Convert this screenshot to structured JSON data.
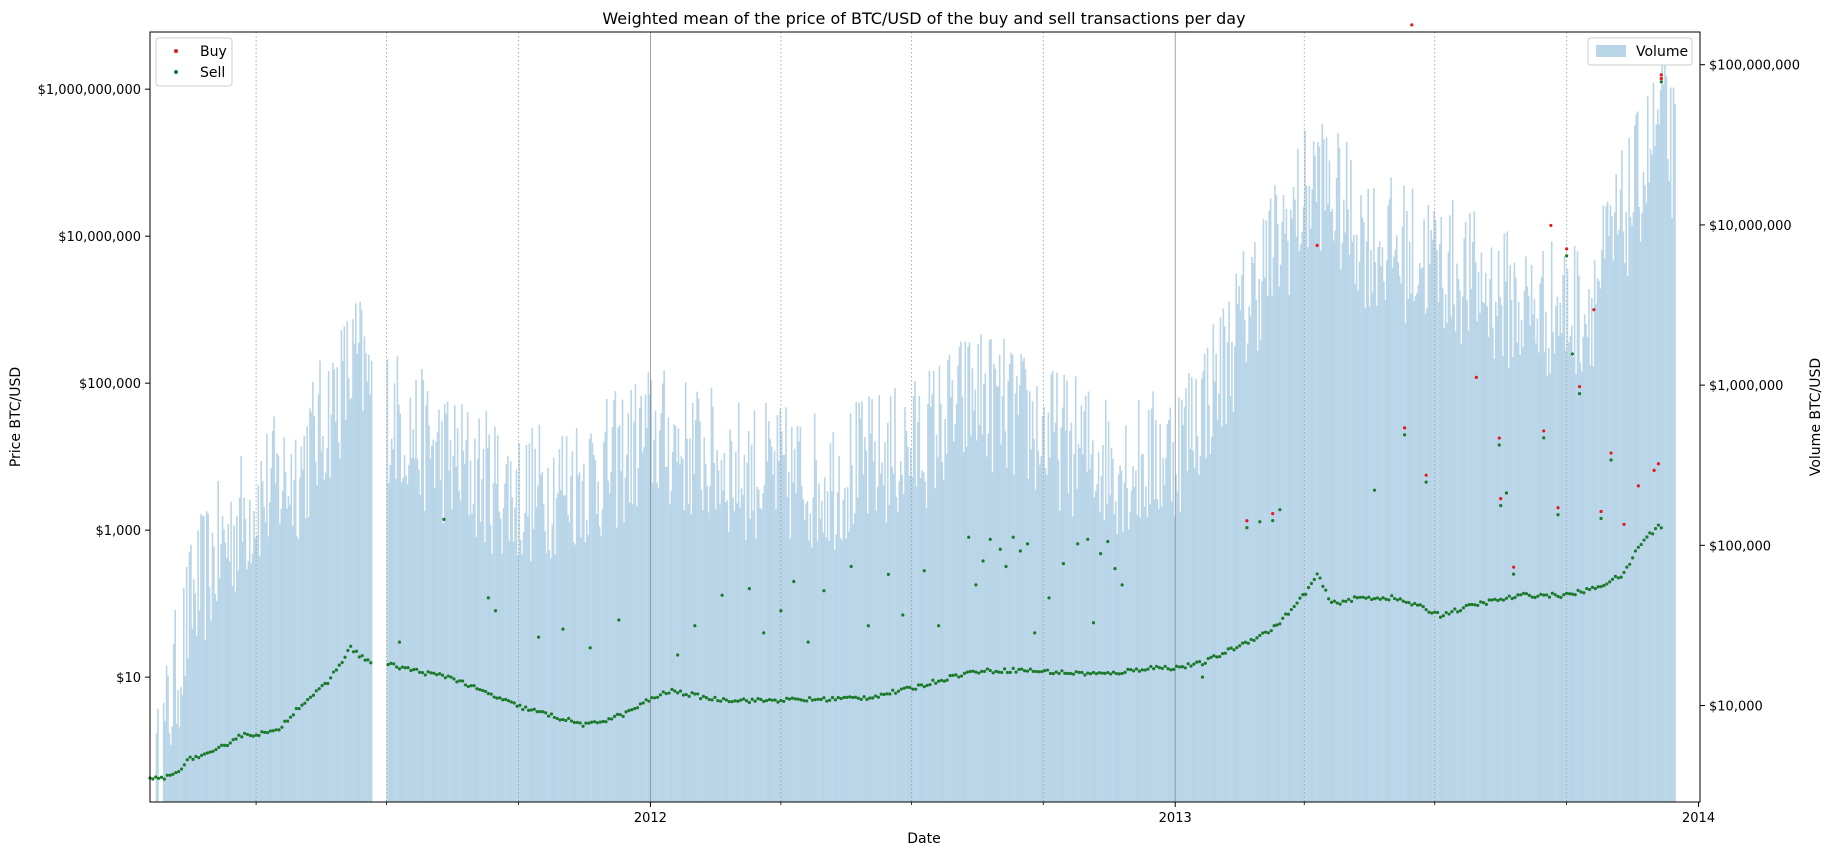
{
  "chart_data": {
    "type": "scatter",
    "title": "Weighted mean of the price of BTC/USD of the buy and sell transactions per day",
    "xlabel": "Date",
    "ylabel": "Price BTC/USD",
    "y2label": "Volume BTC/USD",
    "x_range": [
      "2011-01-17",
      "2014-01-02"
    ],
    "x_ticks": [
      {
        "label": "2012",
        "value": "2012-01-01"
      },
      {
        "label": "2013",
        "value": "2013-01-01"
      },
      {
        "label": "2014",
        "value": "2014-01-01"
      }
    ],
    "y_scale": "log",
    "ylim": [
      0.2,
      6000000000
    ],
    "y_ticks": [
      {
        "label": "$10",
        "value": 10
      },
      {
        "label": "$1,000",
        "value": 1000
      },
      {
        "label": "$100,000",
        "value": 100000
      },
      {
        "label": "$10,000,000",
        "value": 10000000
      },
      {
        "label": "$1,000,000,000",
        "value": 1000000000
      }
    ],
    "y2_scale": "log",
    "y2lim": [
      2500,
      160000000
    ],
    "y2_ticks": [
      {
        "label": "$10,000",
        "value": 10000
      },
      {
        "label": "$100,000",
        "value": 100000
      },
      {
        "label": "$1,000,000",
        "value": 1000000
      },
      {
        "label": "$10,000,000",
        "value": 10000000
      },
      {
        "label": "$100,000,000",
        "value": 100000000
      }
    ],
    "vertical_lines_solid": [
      "2012-01-01",
      "2013-01-01"
    ],
    "vertical_lines_dotted": [
      "2011-04-01",
      "2011-07-01",
      "2011-10-01",
      "2012-04-01",
      "2012-07-01",
      "2012-10-01",
      "2013-04-01",
      "2013-07-01",
      "2013-10-01"
    ],
    "legend_left": {
      "placement": "upper-left",
      "entries": [
        {
          "name": "Buy",
          "color": "#e31a1c"
        },
        {
          "name": "Sell",
          "color": "#1a7a2a"
        }
      ]
    },
    "legend_right": {
      "placement": "upper-right",
      "entries": [
        {
          "name": "Volume",
          "color": "#b9d5e8"
        }
      ]
    },
    "volume_gap": [
      "2011-06-20",
      "2011-07-01"
    ],
    "volume_trend": [
      [
        "2011-01-20",
        3000
      ],
      [
        "2011-02-01",
        12000
      ],
      [
        "2011-02-15",
        45000
      ],
      [
        "2011-03-01",
        80000
      ],
      [
        "2011-04-01",
        200000
      ],
      [
        "2011-05-01",
        300000
      ],
      [
        "2011-06-10",
        1500000
      ],
      [
        "2011-06-20",
        900000
      ],
      [
        "2011-07-01",
        700000
      ],
      [
        "2011-08-01",
        400000
      ],
      [
        "2011-10-01",
        200000
      ],
      [
        "2011-12-01",
        300000
      ],
      [
        "2012-01-01",
        500000
      ],
      [
        "2012-03-01",
        300000
      ],
      [
        "2012-05-01",
        250000
      ],
      [
        "2012-07-01",
        400000
      ],
      [
        "2012-08-15",
        900000
      ],
      [
        "2012-10-01",
        500000
      ],
      [
        "2012-12-01",
        300000
      ],
      [
        "2013-01-01",
        400000
      ],
      [
        "2013-02-01",
        1200000
      ],
      [
        "2013-03-01",
        5000000
      ],
      [
        "2013-04-10",
        20000000
      ],
      [
        "2013-05-15",
        8000000
      ],
      [
        "2013-07-01",
        6000000
      ],
      [
        "2013-09-01",
        3000000
      ],
      [
        "2013-10-15",
        3000000
      ],
      [
        "2013-11-15",
        15000000
      ],
      [
        "2013-12-07",
        50000000
      ],
      [
        "2013-12-15",
        25000000
      ]
    ],
    "price_trend": [
      [
        "2011-01-17",
        0.4
      ],
      [
        "2011-02-01",
        0.45
      ],
      [
        "2011-02-15",
        0.8
      ],
      [
        "2011-03-01",
        0.9
      ],
      [
        "2011-03-20",
        1.6
      ],
      [
        "2011-04-15",
        1.8
      ],
      [
        "2011-05-01",
        4
      ],
      [
        "2011-05-20",
        8
      ],
      [
        "2011-06-06",
        25
      ],
      [
        "2011-06-15",
        18
      ],
      [
        "2011-06-20",
        16
      ],
      [
        "2011-07-01",
        15
      ],
      [
        "2011-08-01",
        11
      ],
      [
        "2011-08-15",
        10
      ],
      [
        "2011-09-01",
        7
      ],
      [
        "2011-10-01",
        4
      ],
      [
        "2011-11-01",
        2.7
      ],
      [
        "2011-11-18",
        2.2
      ],
      [
        "2011-12-15",
        3.2
      ],
      [
        "2012-01-01",
        5
      ],
      [
        "2012-01-15",
        6.5
      ],
      [
        "2012-02-15",
        5
      ],
      [
        "2012-03-15",
        4.8
      ],
      [
        "2012-05-01",
        5
      ],
      [
        "2012-06-01",
        5.3
      ],
      [
        "2012-07-01",
        7
      ],
      [
        "2012-08-01",
        10.5
      ],
      [
        "2012-08-15",
        12
      ],
      [
        "2012-09-15",
        12.5
      ],
      [
        "2012-10-15",
        11.5
      ],
      [
        "2012-11-15",
        11
      ],
      [
        "2012-12-15",
        13.5
      ],
      [
        "2013-01-01",
        13.4
      ],
      [
        "2013-01-20",
        15.5
      ],
      [
        "2013-02-15",
        27
      ],
      [
        "2013-03-10",
        45
      ],
      [
        "2013-03-25",
        90
      ],
      [
        "2013-04-05",
        170
      ],
      [
        "2013-04-10",
        250
      ],
      [
        "2013-04-20",
        100
      ],
      [
        "2013-05-10",
        120
      ],
      [
        "2013-06-01",
        120
      ],
      [
        "2013-06-15",
        100
      ],
      [
        "2013-07-05",
        70
      ],
      [
        "2013-08-01",
        100
      ],
      [
        "2013-09-01",
        130
      ],
      [
        "2013-10-01",
        130
      ],
      [
        "2013-10-20",
        160
      ],
      [
        "2013-11-10",
        250
      ],
      [
        "2013-11-20",
        600
      ],
      [
        "2013-12-01",
        1000
      ],
      [
        "2013-12-04",
        1150
      ],
      [
        "2013-12-07",
        1100
      ]
    ],
    "sell_outliers": [
      [
        "2011-07-10",
        30
      ],
      [
        "2011-08-10",
        1400
      ],
      [
        "2011-09-10",
        120
      ],
      [
        "2011-09-15",
        80
      ],
      [
        "2011-10-15",
        35
      ],
      [
        "2011-11-01",
        45
      ],
      [
        "2011-11-20",
        25
      ],
      [
        "2011-12-10",
        60
      ],
      [
        "2012-01-20",
        20
      ],
      [
        "2012-02-01",
        50
      ],
      [
        "2012-02-20",
        130
      ],
      [
        "2012-03-10",
        160
      ],
      [
        "2012-03-20",
        40
      ],
      [
        "2012-04-01",
        80
      ],
      [
        "2012-04-10",
        200
      ],
      [
        "2012-04-20",
        30
      ],
      [
        "2012-05-01",
        150
      ],
      [
        "2012-05-20",
        320
      ],
      [
        "2012-06-01",
        50
      ],
      [
        "2012-06-15",
        250
      ],
      [
        "2012-06-25",
        70
      ],
      [
        "2012-07-10",
        280
      ],
      [
        "2012-07-20",
        50
      ],
      [
        "2012-08-10",
        800
      ],
      [
        "2012-08-15",
        180
      ],
      [
        "2012-08-20",
        380
      ],
      [
        "2012-08-25",
        750
      ],
      [
        "2012-09-01",
        550
      ],
      [
        "2012-09-05",
        320
      ],
      [
        "2012-09-10",
        800
      ],
      [
        "2012-09-15",
        520
      ],
      [
        "2012-09-20",
        650
      ],
      [
        "2012-09-25",
        40
      ],
      [
        "2012-10-05",
        120
      ],
      [
        "2012-10-15",
        350
      ],
      [
        "2012-10-25",
        650
      ],
      [
        "2012-11-01",
        750
      ],
      [
        "2012-11-05",
        55
      ],
      [
        "2012-11-10",
        480
      ],
      [
        "2012-11-15",
        700
      ],
      [
        "2012-11-20",
        300
      ],
      [
        "2012-11-25",
        180
      ],
      [
        "2013-01-20",
        10
      ],
      [
        "2013-03-01",
        1300
      ],
      [
        "2013-03-15",
        1900
      ],
      [
        "2013-05-20",
        3500
      ],
      [
        "2013-08-20",
        3200
      ],
      [
        "2013-10-05",
        250000
      ]
    ],
    "buy_outliers": [
      [
        "2013-04-10",
        7500000
      ],
      [
        "2013-06-15",
        7500000000
      ],
      [
        "2013-07-30",
        120000
      ],
      [
        "2013-09-20",
        14000000
      ],
      [
        "2013-10-20",
        1000000
      ],
      [
        "2013-11-10",
        1200
      ],
      [
        "2013-11-20",
        4000
      ],
      [
        "2013-12-01",
        6500
      ],
      [
        "2013-12-04",
        8000
      ],
      [
        "2013-12-06",
        1400000000
      ]
    ],
    "buy_sell_pairs": [
      [
        "2013-02-20",
        1200
      ],
      [
        "2013-03-10",
        1500
      ],
      [
        "2013-06-10",
        22000
      ],
      [
        "2013-06-25",
        5000
      ],
      [
        "2013-08-15",
        16000
      ],
      [
        "2013-08-16",
        2400
      ],
      [
        "2013-08-25",
        280
      ],
      [
        "2013-09-15",
        20000
      ],
      [
        "2013-09-25",
        1800
      ],
      [
        "2013-10-01",
        6000000
      ],
      [
        "2013-10-10",
        80000
      ],
      [
        "2013-10-25",
        1600
      ],
      [
        "2013-11-01",
        10000
      ],
      [
        "2013-12-06",
        1400000000
      ]
    ]
  }
}
